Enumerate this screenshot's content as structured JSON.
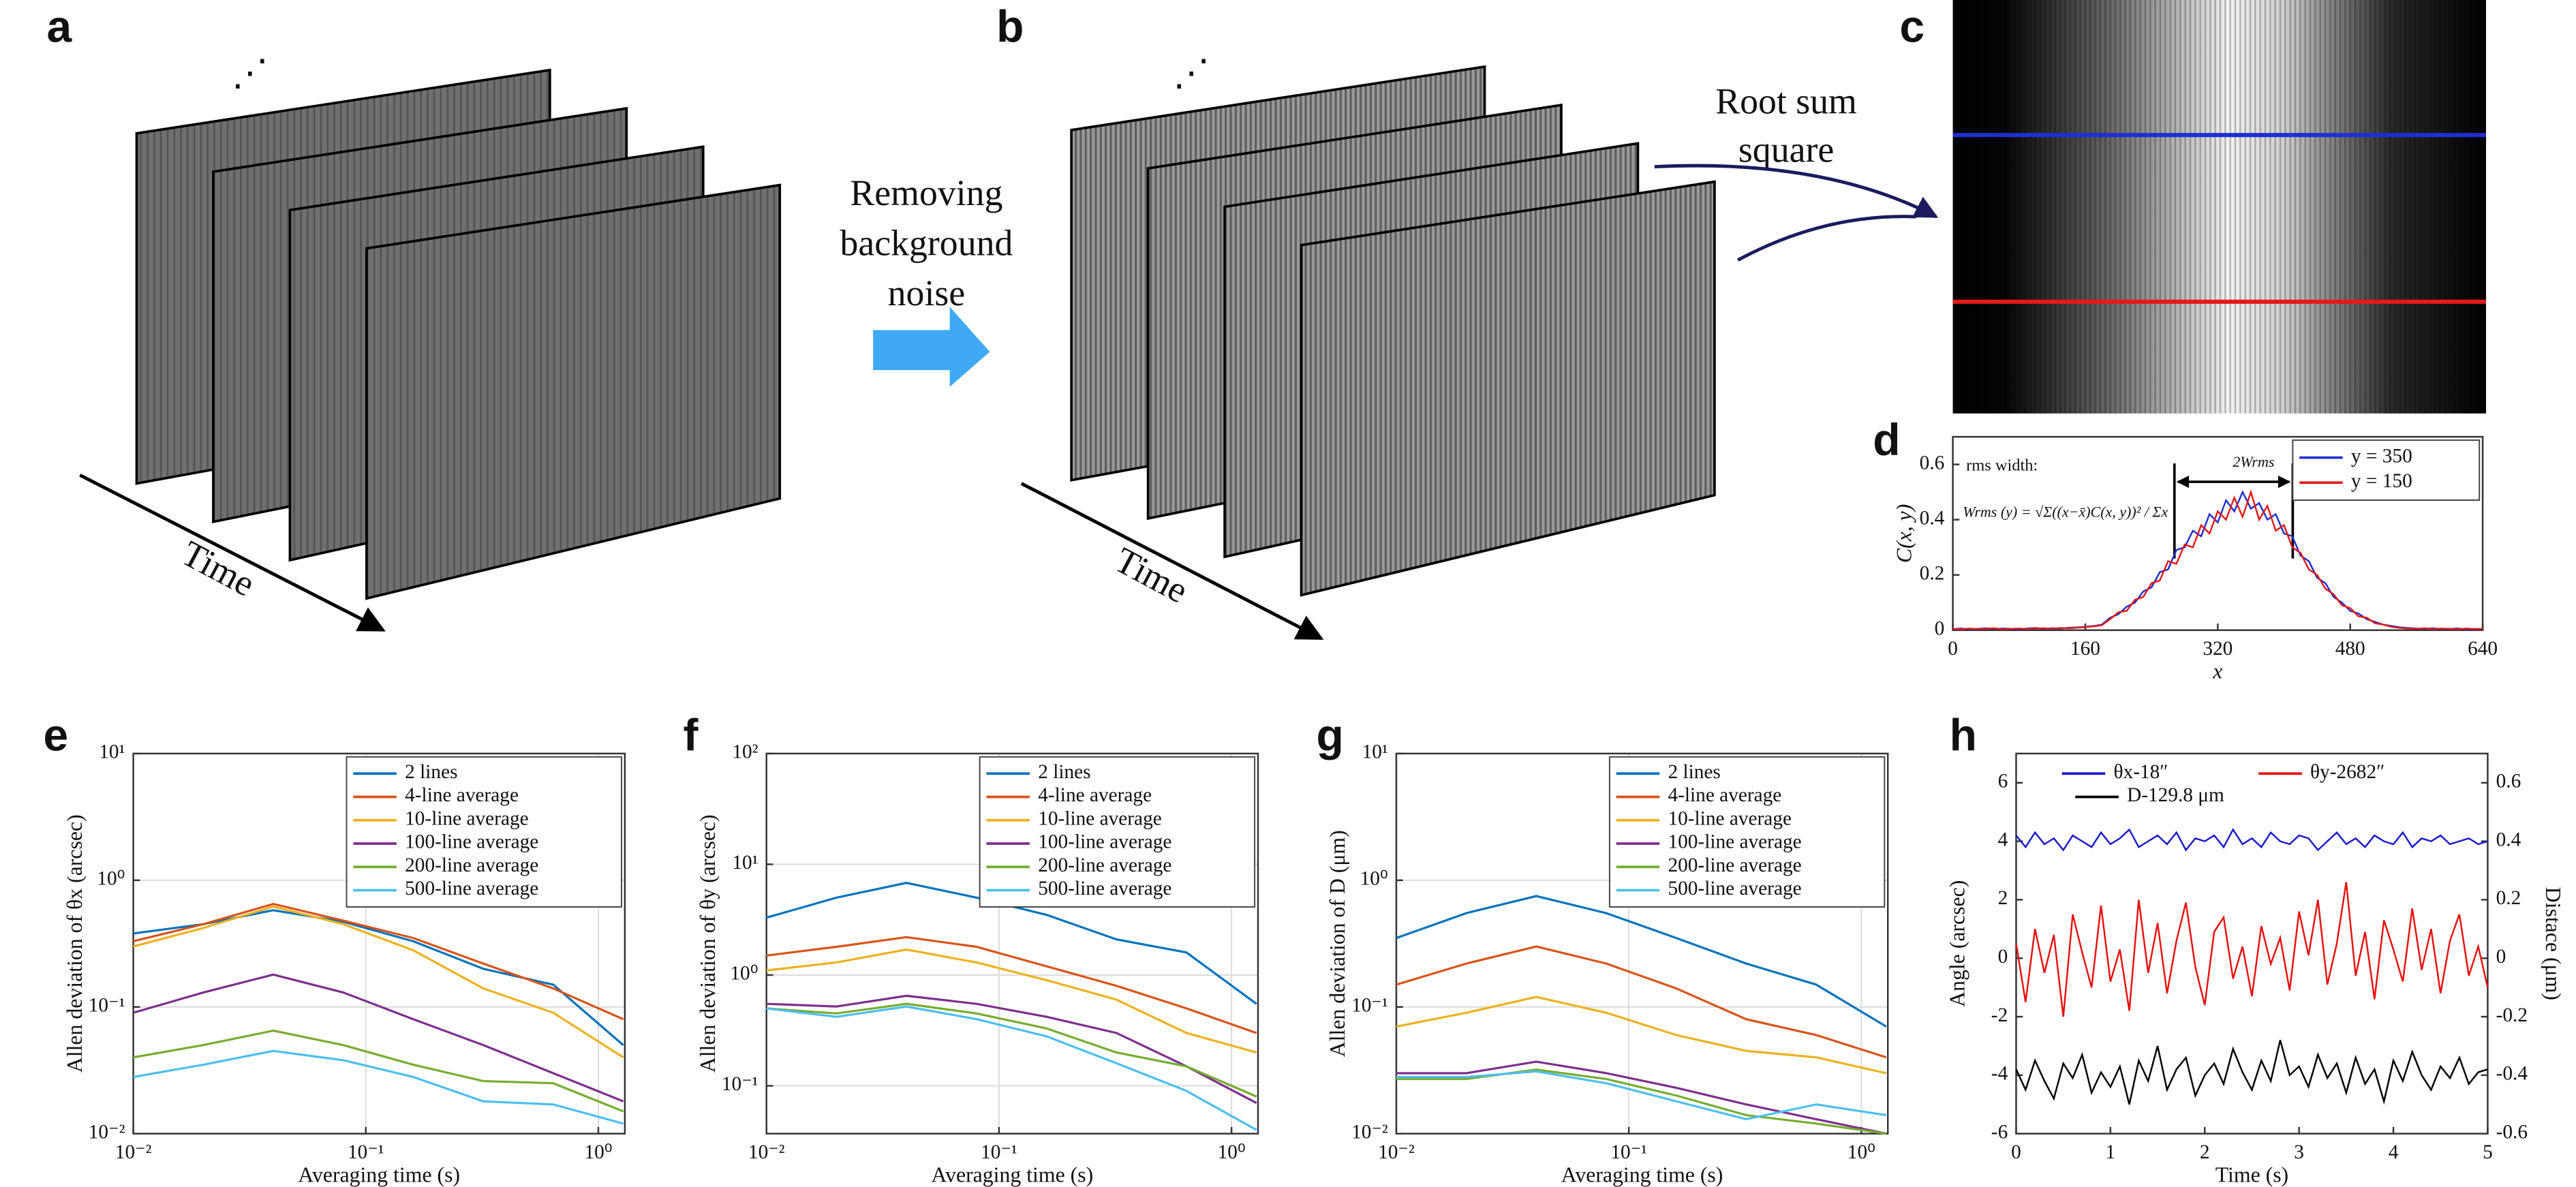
{
  "panel_labels": [
    "a",
    "b",
    "c",
    "d",
    "e",
    "f",
    "g",
    "h"
  ],
  "diagram": {
    "ellipsis_a": "⋰",
    "ellipsis_b": "⋰",
    "time_a": "Time",
    "time_b": "Time",
    "step_remove": [
      "Removing",
      "background",
      "noise"
    ],
    "step_rss": [
      "Root sum",
      "square"
    ]
  },
  "chart_data": [
    {
      "type": "line",
      "xlabel": "x",
      "ylabel": "C(x, y)",
      "annotations": [
        "rms width:",
        "Wrms (y) = √Σ((x−x̄)C(x, y))² / Σx",
        "2Wrms"
      ],
      "x": [
        0,
        10,
        20,
        30,
        40,
        50,
        60,
        70,
        80,
        90,
        100,
        110,
        120,
        130,
        140,
        150,
        160,
        170,
        180,
        190,
        200,
        210,
        220,
        230,
        240,
        250,
        260,
        270,
        280,
        290,
        300,
        310,
        320,
        330,
        340,
        350,
        360,
        370,
        380,
        390,
        400,
        410,
        420,
        430,
        440,
        450,
        460,
        470,
        480,
        490,
        500,
        510,
        520,
        530,
        540,
        550,
        560,
        570,
        580,
        590,
        600,
        610,
        620,
        630,
        640
      ],
      "series": [
        {
          "name": "y = 350",
          "color": "#1f2fd0",
          "values": [
            0.004,
            0.006,
            0.003,
            0.005,
            0.007,
            0.004,
            0.006,
            0.005,
            0.003,
            0.006,
            0.008,
            0.005,
            0.007,
            0.006,
            0.009,
            0.01,
            0.012,
            0.015,
            0.02,
            0.045,
            0.058,
            0.085,
            0.1,
            0.14,
            0.155,
            0.21,
            0.22,
            0.29,
            0.3,
            0.36,
            0.34,
            0.42,
            0.39,
            0.47,
            0.43,
            0.5,
            0.44,
            0.46,
            0.4,
            0.42,
            0.35,
            0.34,
            0.27,
            0.25,
            0.19,
            0.17,
            0.12,
            0.1,
            0.07,
            0.06,
            0.04,
            0.03,
            0.02,
            0.015,
            0.01,
            0.008,
            0.006,
            0.005,
            0.007,
            0.004,
            0.005,
            0.006,
            0.003,
            0.005,
            0.004
          ]
        },
        {
          "name": "y = 150",
          "color": "#e31a1a",
          "values": [
            0.005,
            0.003,
            0.006,
            0.004,
            0.005,
            0.007,
            0.003,
            0.005,
            0.006,
            0.004,
            0.006,
            0.007,
            0.005,
            0.008,
            0.007,
            0.009,
            0.011,
            0.014,
            0.018,
            0.04,
            0.065,
            0.07,
            0.11,
            0.12,
            0.17,
            0.18,
            0.25,
            0.24,
            0.31,
            0.3,
            0.38,
            0.35,
            0.43,
            0.4,
            0.48,
            0.41,
            0.5,
            0.4,
            0.45,
            0.36,
            0.38,
            0.3,
            0.28,
            0.22,
            0.2,
            0.15,
            0.13,
            0.09,
            0.08,
            0.05,
            0.045,
            0.025,
            0.02,
            0.012,
            0.008,
            0.006,
            0.005,
            0.007,
            0.004,
            0.006,
            0.005,
            0.003,
            0.006,
            0.004,
            0.005
          ]
        }
      ],
      "xlim": [
        0,
        640
      ],
      "xticks": [
        0,
        160,
        320,
        480,
        640
      ],
      "ylim": [
        0,
        0.7
      ],
      "yticks": [
        0,
        0.2,
        0.4,
        0.6
      ],
      "grid": false,
      "legend": "upper right"
    },
    {
      "type": "line",
      "xlabel": "Averaging time (s)",
      "ylabel": "Allen deviation of θx (arcsec)",
      "x": [
        0.01,
        0.02,
        0.04,
        0.08,
        0.16,
        0.32,
        0.64,
        1.28
      ],
      "series": [
        {
          "name": "2 lines",
          "color": "#0072bd",
          "values": [
            0.38,
            0.45,
            0.58,
            0.47,
            0.33,
            0.2,
            0.15,
            0.05
          ]
        },
        {
          "name": "4-line average",
          "color": "#d95319",
          "values": [
            0.33,
            0.45,
            0.65,
            0.48,
            0.35,
            0.22,
            0.14,
            0.08
          ]
        },
        {
          "name": "10-line average",
          "color": "#edb120",
          "values": [
            0.3,
            0.42,
            0.62,
            0.45,
            0.28,
            0.14,
            0.09,
            0.04
          ]
        },
        {
          "name": "100-line average",
          "color": "#7e2f8e",
          "values": [
            0.09,
            0.13,
            0.18,
            0.13,
            0.08,
            0.05,
            0.03,
            0.018
          ]
        },
        {
          "name": "200-line average",
          "color": "#77ac30",
          "values": [
            0.04,
            0.05,
            0.065,
            0.05,
            0.035,
            0.026,
            0.025,
            0.015
          ]
        },
        {
          "name": "500-line average",
          "color": "#4dbeee",
          "values": [
            0.028,
            0.035,
            0.045,
            0.038,
            0.028,
            0.018,
            0.017,
            0.012
          ]
        }
      ],
      "xscale": "log",
      "yscale": "log",
      "xlim": [
        0.01,
        1.3
      ],
      "xticks": [
        {
          "value": 0.01,
          "label": "10⁻²"
        },
        {
          "value": 0.1,
          "label": "10⁻¹"
        },
        {
          "value": 1,
          "label": "10⁰"
        }
      ],
      "ylim": [
        0.01,
        10
      ],
      "yticks": [
        {
          "value": 0.01,
          "label": "10⁻²"
        },
        {
          "value": 0.1,
          "label": "10⁻¹"
        },
        {
          "value": 1,
          "label": "10⁰"
        },
        {
          "value": 10,
          "label": "10¹"
        }
      ],
      "grid": true,
      "legend": "upper right"
    },
    {
      "type": "line",
      "xlabel": "Averaging time (s)",
      "ylabel": "Allen deviation of θy (arcsec)",
      "x": [
        0.01,
        0.02,
        0.04,
        0.08,
        0.16,
        0.32,
        0.64,
        1.28
      ],
      "series": [
        {
          "name": "2 lines",
          "color": "#0072bd",
          "values": [
            3.3,
            5,
            6.8,
            5,
            3.5,
            2.1,
            1.6,
            0.55
          ]
        },
        {
          "name": "4-line average",
          "color": "#d95319",
          "values": [
            1.5,
            1.8,
            2.2,
            1.8,
            1.2,
            0.8,
            0.5,
            0.3
          ]
        },
        {
          "name": "10-line average",
          "color": "#edb120",
          "values": [
            1.1,
            1.3,
            1.7,
            1.3,
            0.9,
            0.6,
            0.3,
            0.2
          ]
        },
        {
          "name": "100-line average",
          "color": "#7e2f8e",
          "values": [
            0.55,
            0.52,
            0.65,
            0.55,
            0.42,
            0.3,
            0.15,
            0.07
          ]
        },
        {
          "name": "200-line average",
          "color": "#77ac30",
          "values": [
            0.5,
            0.45,
            0.55,
            0.45,
            0.33,
            0.2,
            0.15,
            0.08
          ]
        },
        {
          "name": "500-line average",
          "color": "#4dbeee",
          "values": [
            0.5,
            0.42,
            0.52,
            0.4,
            0.28,
            0.16,
            0.09,
            0.04
          ]
        }
      ],
      "xscale": "log",
      "yscale": "log",
      "xlim": [
        0.01,
        1.3
      ],
      "xticks": [
        {
          "value": 0.01,
          "label": "10⁻²"
        },
        {
          "value": 0.1,
          "label": "10⁻¹"
        },
        {
          "value": 1,
          "label": "10⁰"
        }
      ],
      "ylim": [
        0.037,
        100
      ],
      "yticks": [
        {
          "value": 0.1,
          "label": "10⁻¹"
        },
        {
          "value": 1,
          "label": "10⁰"
        },
        {
          "value": 10,
          "label": "10¹"
        },
        {
          "value": 100,
          "label": "10²"
        }
      ],
      "grid": true,
      "legend": "upper right"
    },
    {
      "type": "line",
      "xlabel": "Averaging time (s)",
      "ylabel": "Allen deviation of D (μm)",
      "x": [
        0.01,
        0.02,
        0.04,
        0.08,
        0.16,
        0.32,
        0.64,
        1.28
      ],
      "series": [
        {
          "name": "2 lines",
          "color": "#0072bd",
          "values": [
            0.35,
            0.55,
            0.75,
            0.55,
            0.35,
            0.22,
            0.15,
            0.07
          ]
        },
        {
          "name": "4-line average",
          "color": "#d95319",
          "values": [
            0.15,
            0.22,
            0.3,
            0.22,
            0.14,
            0.08,
            0.06,
            0.04
          ]
        },
        {
          "name": "10-line average",
          "color": "#edb120",
          "values": [
            0.07,
            0.09,
            0.12,
            0.09,
            0.06,
            0.045,
            0.04,
            0.03
          ]
        },
        {
          "name": "100-line average",
          "color": "#7e2f8e",
          "values": [
            0.03,
            0.03,
            0.037,
            0.03,
            0.023,
            0.017,
            0.013,
            0.01
          ]
        },
        {
          "name": "200-line average",
          "color": "#77ac30",
          "values": [
            0.027,
            0.027,
            0.032,
            0.027,
            0.02,
            0.014,
            0.012,
            0.01
          ]
        },
        {
          "name": "500-line average",
          "color": "#4dbeee",
          "values": [
            0.028,
            0.028,
            0.031,
            0.025,
            0.018,
            0.013,
            0.017,
            0.014
          ]
        }
      ],
      "xscale": "log",
      "yscale": "log",
      "xlim": [
        0.01,
        1.3
      ],
      "xticks": [
        {
          "value": 0.01,
          "label": "10⁻²"
        },
        {
          "value": 0.1,
          "label": "10⁻¹"
        },
        {
          "value": 1,
          "label": "10⁰"
        }
      ],
      "ylim": [
        0.01,
        10
      ],
      "yticks": [
        {
          "value": 0.01,
          "label": "10⁻²"
        },
        {
          "value": 0.1,
          "label": "10⁻¹"
        },
        {
          "value": 1,
          "label": "10⁰"
        },
        {
          "value": 10,
          "label": "10¹"
        }
      ],
      "grid": true,
      "legend": "upper right"
    },
    {
      "type": "line",
      "xlabel": "Time (s)",
      "ylabel": "Angle (arcsec)",
      "y2label": "Distace (μm)",
      "x": [
        0,
        0.1,
        0.2,
        0.3,
        0.4,
        0.5,
        0.6,
        0.7,
        0.8,
        0.9,
        1,
        1.1,
        1.2,
        1.3,
        1.4,
        1.5,
        1.6,
        1.7,
        1.8,
        1.9,
        2,
        2.1,
        2.2,
        2.3,
        2.4,
        2.5,
        2.6,
        2.7,
        2.8,
        2.9,
        3,
        3.1,
        3.2,
        3.3,
        3.4,
        3.5,
        3.6,
        3.7,
        3.8,
        3.9,
        4,
        4.1,
        4.2,
        4.3,
        4.4,
        4.5,
        4.6,
        4.7,
        4.8,
        4.9,
        5
      ],
      "series": [
        {
          "name": "θx-18″",
          "color": "#1a1ac8",
          "values": [
            4.2,
            3.8,
            4.3,
            3.9,
            4.1,
            3.7,
            4.2,
            4.0,
            3.8,
            4.3,
            3.9,
            4.1,
            4.4,
            3.8,
            4.0,
            4.2,
            3.9,
            4.3,
            3.7,
            4.1,
            4.0,
            4.2,
            3.8,
            4.4,
            3.9,
            4.1,
            3.8,
            4.3,
            4.0,
            3.9,
            4.2,
            4.1,
            3.7,
            4.0,
            4.3,
            3.9,
            4.1,
            3.8,
            4.2,
            4.0,
            3.9,
            4.3,
            3.8,
            4.1,
            4.0,
            4.2,
            3.9,
            4.0,
            4.1,
            3.9,
            4.0
          ]
        },
        {
          "name": "θy-2682″",
          "color": "#e81010",
          "values": [
            0.5,
            -1.5,
            1.0,
            -0.5,
            0.8,
            -2.0,
            1.5,
            0.2,
            -1.0,
            1.8,
            -0.8,
            0.3,
            -1.8,
            2.0,
            -0.5,
            1.2,
            -1.2,
            0.6,
            1.9,
            -0.3,
            -1.6,
            0.9,
            1.4,
            -0.7,
            0.4,
            -1.3,
            1.1,
            -0.2,
            0.7,
            -1.1,
            1.6,
            0.1,
            2.0,
            -0.9,
            0.5,
            2.6,
            -0.6,
            0.9,
            -1.4,
            1.3,
            0.3,
            -0.8,
            1.7,
            -0.4,
            1.0,
            -1.2,
            0.6,
            1.5,
            -0.6,
            0.4,
            -1.0
          ]
        },
        {
          "name": "D-129.8 μm",
          "color": "#000000",
          "axis": "y2",
          "values": [
            -0.38,
            -0.45,
            -0.35,
            -0.42,
            -0.48,
            -0.36,
            -0.41,
            -0.33,
            -0.46,
            -0.39,
            -0.44,
            -0.37,
            -0.5,
            -0.35,
            -0.42,
            -0.3,
            -0.45,
            -0.38,
            -0.34,
            -0.47,
            -0.4,
            -0.36,
            -0.43,
            -0.31,
            -0.39,
            -0.45,
            -0.35,
            -0.42,
            -0.28,
            -0.4,
            -0.37,
            -0.44,
            -0.33,
            -0.41,
            -0.36,
            -0.46,
            -0.34,
            -0.43,
            -0.38,
            -0.49,
            -0.35,
            -0.42,
            -0.32,
            -0.4,
            -0.45,
            -0.37,
            -0.41,
            -0.34,
            -0.43,
            -0.39,
            -0.38
          ]
        }
      ],
      "xlim": [
        0,
        5
      ],
      "xticks": [
        0,
        1,
        2,
        3,
        4,
        5
      ],
      "ylim": [
        -6,
        7
      ],
      "yticks": [
        -6,
        -4,
        -2,
        0,
        2,
        4,
        6
      ],
      "y2lim": [
        -0.6,
        0.7
      ],
      "y2ticks": [
        -0.6,
        -0.4,
        -0.2,
        0,
        0.2,
        0.4,
        0.6
      ],
      "grid": false,
      "legend": "upper center"
    }
  ]
}
